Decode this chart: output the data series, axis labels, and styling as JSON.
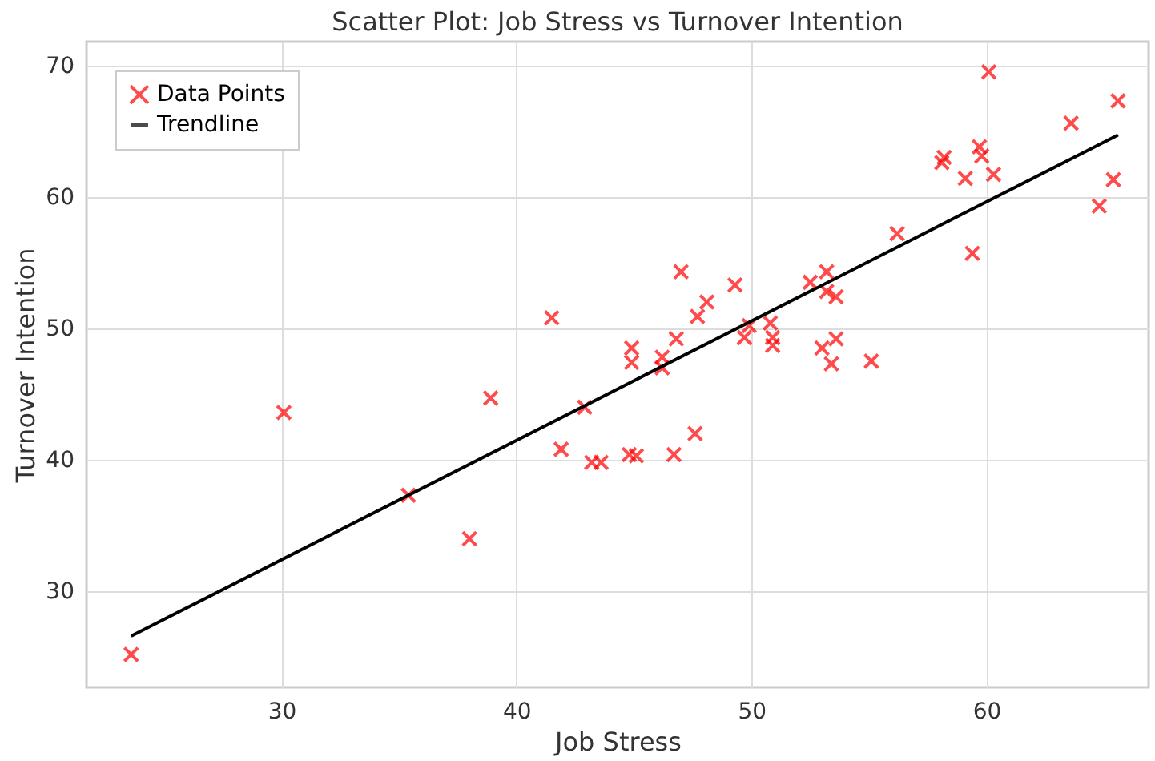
{
  "chart_data": {
    "type": "scatter",
    "title": "Scatter Plot: Job Stress vs Turnover Intention",
    "xlabel": "Job Stress",
    "ylabel": "Turnover Intention",
    "xlim": [
      21.7,
      66.9
    ],
    "ylim": [
      22.7,
      71.8
    ],
    "xticks": [
      30,
      40,
      50,
      60
    ],
    "yticks": [
      30,
      40,
      50,
      60,
      70
    ],
    "grid": true,
    "legend": "top left",
    "series": [
      {
        "name": "Data Points",
        "color": "#ff0000",
        "marker": "cross",
        "x": [
          23.6,
          30.1,
          35.4,
          38.9,
          38.0,
          41.5,
          41.9,
          42.9,
          43.2,
          43.6,
          44.8,
          45.1,
          44.9,
          44.9,
          46.2,
          46.2,
          46.8,
          47.0,
          46.7,
          47.6,
          47.7,
          48.1,
          49.3,
          49.7,
          49.9,
          50.8,
          50.9,
          50.9,
          52.5,
          53.2,
          53.2,
          53.6,
          53.0,
          53.6,
          53.4,
          55.1,
          56.2,
          58.1,
          58.2,
          59.1,
          59.4,
          59.7,
          59.8,
          60.3,
          60.1,
          63.6,
          65.6,
          65.4,
          64.8
        ],
        "values": [
          25.2,
          43.6,
          37.3,
          44.7,
          34.0,
          50.8,
          40.8,
          44.0,
          39.8,
          39.8,
          40.4,
          40.3,
          48.5,
          47.4,
          47.8,
          47.0,
          49.2,
          54.3,
          40.4,
          42.0,
          50.9,
          52.0,
          53.3,
          49.3,
          50.2,
          50.4,
          49.3,
          48.7,
          53.5,
          54.3,
          52.8,
          52.4,
          48.5,
          49.2,
          47.3,
          47.5,
          57.2,
          62.6,
          63.0,
          61.4,
          55.7,
          63.8,
          63.1,
          61.7,
          69.5,
          65.6,
          67.3,
          61.3,
          59.3
        ]
      },
      {
        "name": "Trendline",
        "type": "line",
        "color": "#000000",
        "line_style": "solid",
        "x": [
          23.6,
          65.6
        ],
        "values": [
          26.6,
          64.7
        ]
      }
    ]
  }
}
